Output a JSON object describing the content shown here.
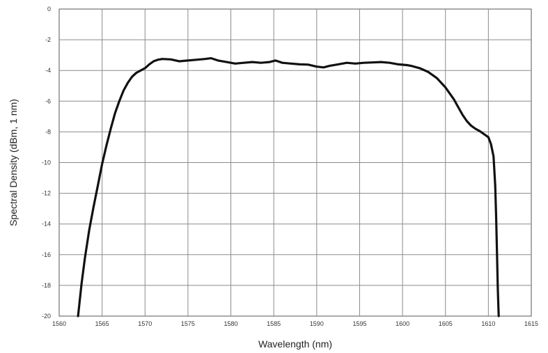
{
  "chart_data": {
    "type": "line",
    "title": "",
    "xlabel": "Wavelength (nm)",
    "ylabel": "Spectral Density (dBm, 1 nm)",
    "xlim": [
      1560,
      1615
    ],
    "ylim": [
      -20,
      0
    ],
    "xticks": [
      1560,
      1565,
      1570,
      1575,
      1580,
      1585,
      1590,
      1595,
      1600,
      1605,
      1610,
      1615
    ],
    "yticks": [
      0,
      -2,
      -4,
      -6,
      -8,
      -10,
      -12,
      -14,
      -16,
      -18,
      -20
    ],
    "grid": true,
    "legend": "none",
    "line_color": "#111111",
    "series": [
      {
        "x": [
          1562.2,
          1562.6,
          1563.0,
          1563.5,
          1564.0,
          1564.5,
          1565.0,
          1565.5,
          1566.0,
          1566.5,
          1567.0,
          1567.5,
          1568.0,
          1568.5,
          1569.0,
          1569.5,
          1570.0,
          1570.5,
          1571.0,
          1571.5,
          1572.0,
          1573.0,
          1574.0,
          1575.0,
          1576.0,
          1577.0,
          1577.7,
          1578.5,
          1579.5,
          1580.5,
          1581.5,
          1582.5,
          1583.5,
          1584.5,
          1585.2,
          1586.0,
          1587.0,
          1588.0,
          1589.0,
          1590.0,
          1590.8,
          1591.5,
          1592.5,
          1593.5,
          1594.5,
          1595.5,
          1596.5,
          1597.5,
          1598.5,
          1599.5,
          1600.5,
          1601.0,
          1602.0,
          1603.0,
          1604.0,
          1605.0,
          1605.5,
          1606.0,
          1606.5,
          1607.0,
          1607.5,
          1608.0,
          1608.5,
          1609.0,
          1609.5,
          1610.0,
          1610.3,
          1610.6,
          1610.8,
          1610.9,
          1611.0,
          1611.1,
          1611.2
        ],
        "y": [
          -20.0,
          -17.9,
          -16.2,
          -14.4,
          -12.9,
          -11.5,
          -10.1,
          -8.9,
          -7.8,
          -6.8,
          -6.0,
          -5.3,
          -4.8,
          -4.4,
          -4.15,
          -4.0,
          -3.85,
          -3.6,
          -3.4,
          -3.3,
          -3.25,
          -3.28,
          -3.4,
          -3.35,
          -3.3,
          -3.25,
          -3.2,
          -3.35,
          -3.45,
          -3.55,
          -3.5,
          -3.45,
          -3.5,
          -3.45,
          -3.35,
          -3.5,
          -3.55,
          -3.6,
          -3.62,
          -3.75,
          -3.8,
          -3.7,
          -3.6,
          -3.5,
          -3.55,
          -3.5,
          -3.48,
          -3.45,
          -3.5,
          -3.6,
          -3.65,
          -3.7,
          -3.85,
          -4.1,
          -4.5,
          -5.1,
          -5.5,
          -5.9,
          -6.4,
          -6.9,
          -7.3,
          -7.6,
          -7.8,
          -7.95,
          -8.15,
          -8.35,
          -8.8,
          -9.6,
          -11.5,
          -13.5,
          -15.8,
          -18.2,
          -20.0
        ]
      }
    ]
  }
}
